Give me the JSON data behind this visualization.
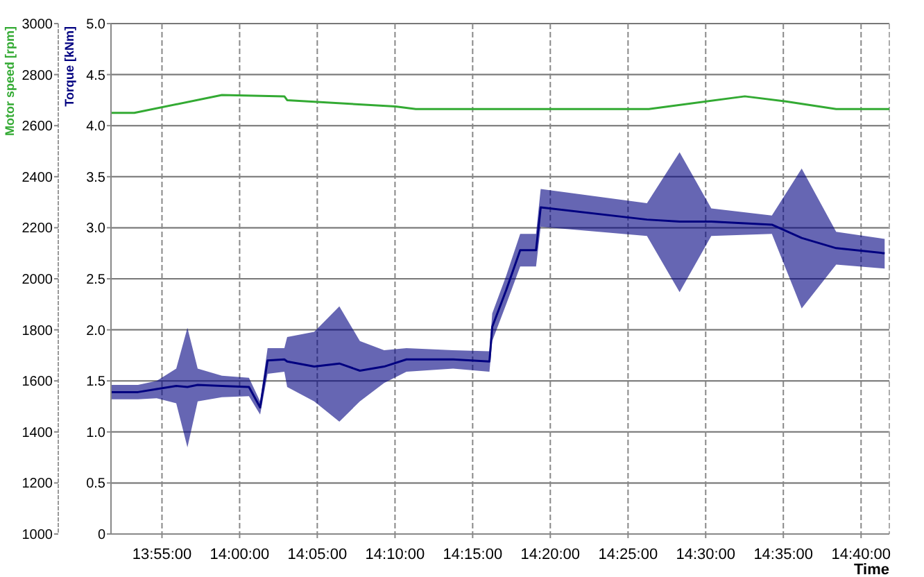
{
  "chart_data": {
    "type": "line",
    "ylabel": "Motor speed [rpm]",
    "y2label": "Torque [kNm]",
    "xlabel": "Time",
    "xlim": [
      13.862,
      14.697
    ],
    "xticks": [
      {
        "value": 13.9167,
        "label": "13:55:00"
      },
      {
        "value": 14.0,
        "label": "14:00:00"
      },
      {
        "value": 14.0833,
        "label": "14:05:00"
      },
      {
        "value": 14.1667,
        "label": "14:10:00"
      },
      {
        "value": 14.25,
        "label": "14:15:00"
      },
      {
        "value": 14.3333,
        "label": "14:20:00"
      },
      {
        "value": 14.4167,
        "label": "14:25:00"
      },
      {
        "value": 14.5,
        "label": "14:30:00"
      },
      {
        "value": 14.5833,
        "label": "14:35:00"
      },
      {
        "value": 14.6667,
        "label": "14:40:00"
      }
    ],
    "ylim": [
      1000,
      3000
    ],
    "yticks": [
      1000,
      1200,
      1400,
      1600,
      1800,
      2000,
      2200,
      2400,
      2600,
      2800,
      3000
    ],
    "y2lim": [
      0,
      5
    ],
    "y2ticks": [
      {
        "value": 0,
        "label": "0"
      },
      0.5,
      {
        "value": 1,
        "label": "1.0"
      },
      1.5,
      {
        "value": 2,
        "label": "2.0"
      },
      2.5,
      {
        "value": 3,
        "label": "3.0"
      },
      3.5,
      {
        "value": 4,
        "label": "4.0"
      },
      4.5,
      {
        "value": 5,
        "label": "5.0"
      }
    ],
    "grid": true,
    "line_style": "solid",
    "series": [
      {
        "color": "#33aa33",
        "x": [
          13.862,
          13.887,
          13.981,
          14.048,
          14.051,
          14.167,
          14.189,
          14.278,
          14.439,
          14.542,
          14.586,
          14.64,
          14.697
        ],
        "values": [
          2650,
          2650,
          2720,
          2715,
          2700,
          2675,
          2665,
          2665,
          2665,
          2715,
          2695,
          2665,
          2665
        ]
      },
      {
        "color": "#000080",
        "axis": "y2",
        "x": [
          13.862,
          13.891,
          13.911,
          13.932,
          13.944,
          13.955,
          13.981,
          14.01,
          14.022,
          14.03,
          14.048,
          14.051,
          14.08,
          14.107,
          14.129,
          14.155,
          14.179,
          14.229,
          14.268,
          14.271,
          14.286,
          14.301,
          14.318,
          14.323,
          14.437,
          14.472,
          14.506,
          14.571,
          14.603,
          14.64,
          14.692
        ],
        "values": [
          1.39,
          1.39,
          1.42,
          1.45,
          1.44,
          1.46,
          1.45,
          1.44,
          1.24,
          1.7,
          1.71,
          1.69,
          1.64,
          1.67,
          1.6,
          1.64,
          1.71,
          1.71,
          1.69,
          2.03,
          2.39,
          2.78,
          2.78,
          3.2,
          3.08,
          3.06,
          3.06,
          3.03,
          2.9,
          2.8,
          2.75
        ],
        "lower": [
          1.32,
          1.32,
          1.33,
          1.28,
          0.85,
          1.3,
          1.34,
          1.35,
          1.17,
          1.57,
          1.59,
          1.44,
          1.3,
          1.1,
          1.3,
          1.48,
          1.59,
          1.62,
          1.59,
          1.89,
          2.25,
          2.62,
          2.62,
          3.01,
          2.92,
          2.37,
          2.92,
          2.94,
          2.21,
          2.64,
          2.6
        ],
        "upper": [
          1.46,
          1.46,
          1.5,
          1.62,
          2.02,
          1.62,
          1.55,
          1.53,
          1.3,
          1.82,
          1.82,
          1.93,
          1.98,
          2.23,
          1.89,
          1.8,
          1.82,
          1.8,
          1.79,
          2.16,
          2.53,
          2.94,
          2.94,
          3.38,
          3.24,
          3.74,
          3.19,
          3.12,
          3.58,
          2.96,
          2.89
        ]
      }
    ]
  }
}
